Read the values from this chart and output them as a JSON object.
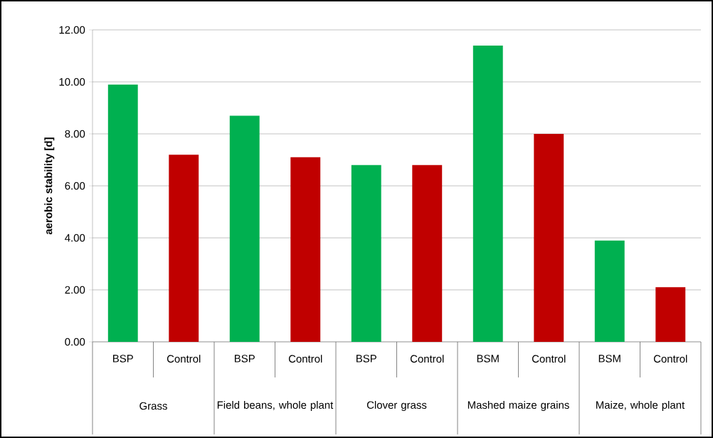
{
  "chart_data": {
    "type": "bar",
    "ylabel": "aerobic stability [d]",
    "categories": [
      "BSP",
      "Control",
      "BSP",
      "Control",
      "BSP",
      "Control",
      "BSM",
      "Control",
      "BSM",
      "Control"
    ],
    "values": [
      9.9,
      7.2,
      8.7,
      7.1,
      6.8,
      6.8,
      11.4,
      8.0,
      3.9,
      2.1
    ],
    "colors": [
      "#00b050",
      "#c00000",
      "#00b050",
      "#c00000",
      "#00b050",
      "#c00000",
      "#00b050",
      "#c00000",
      "#00b050",
      "#c00000"
    ],
    "ylim": [
      0,
      12
    ],
    "yticks": [
      {
        "value": 0,
        "label": "0.00"
      },
      {
        "value": 2,
        "label": "2.00"
      },
      {
        "value": 4,
        "label": "4.00"
      },
      {
        "value": 6,
        "label": "6.00"
      },
      {
        "value": 8,
        "label": "8.00"
      },
      {
        "value": 10,
        "label": "10.00"
      },
      {
        "value": 12,
        "label": "12.00"
      }
    ],
    "grid": "y",
    "annotations": [
      "Grass",
      "Field beans, whole plant",
      "Clover grass",
      "Mashed maize grains",
      "Maize, whole plant"
    ]
  }
}
